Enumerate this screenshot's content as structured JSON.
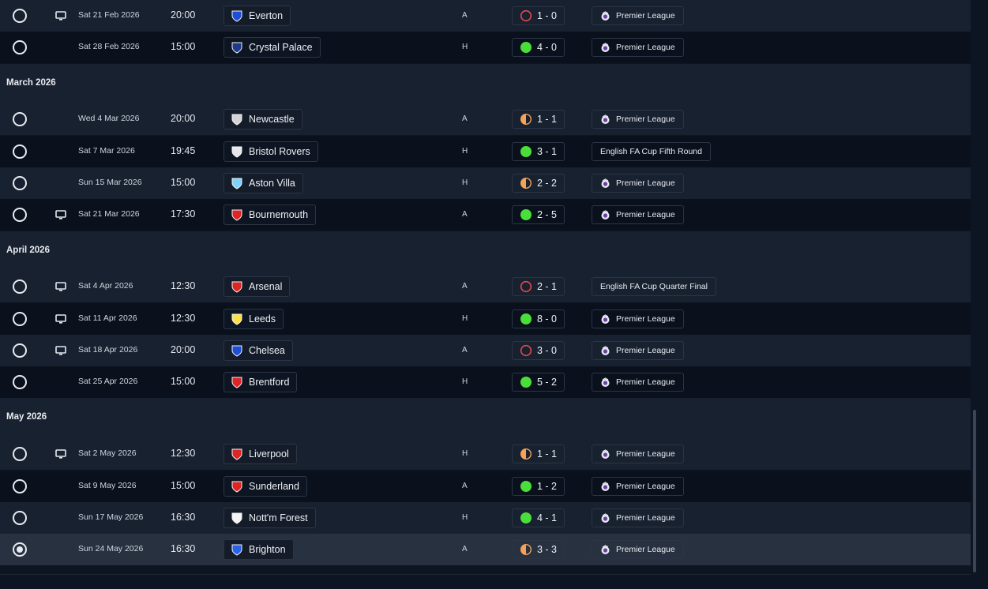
{
  "months": [
    {
      "label": "March 2026"
    },
    {
      "label": "April 2026"
    },
    {
      "label": "May 2026"
    }
  ],
  "fixtures": [
    {
      "date": "Sat 21 Feb 2026",
      "time": "20:00",
      "team": "Everton",
      "venue": "A",
      "score": "1 - 0",
      "outcome": "loss",
      "competition": "Premier League",
      "tv": true,
      "selected": false,
      "badge": "everton-badge",
      "badge_color": "#1d4ed8"
    },
    {
      "date": "Sat 28 Feb 2026",
      "time": "15:00",
      "team": "Crystal Palace",
      "venue": "H",
      "score": "4 - 0",
      "outcome": "win",
      "competition": "Premier League",
      "tv": false,
      "selected": false,
      "badge": "crystal-palace-badge",
      "badge_color": "#1e3a8a"
    },
    {
      "date": "Wed 4 Mar 2026",
      "time": "20:00",
      "team": "Newcastle",
      "venue": "A",
      "score": "1 - 1",
      "outcome": "draw",
      "competition": "Premier League",
      "tv": false,
      "selected": false,
      "badge": "newcastle-badge",
      "badge_color": "#d4d4d4"
    },
    {
      "date": "Sat 7 Mar 2026",
      "time": "19:45",
      "team": "Bristol Rovers",
      "venue": "H",
      "score": "3 - 1",
      "outcome": "win",
      "competition": "English FA Cup Fifth Round",
      "tv": false,
      "selected": false,
      "badge": "bristol-rovers-badge",
      "badge_color": "#e5e7eb"
    },
    {
      "date": "Sun 15 Mar 2026",
      "time": "15:00",
      "team": "Aston Villa",
      "venue": "H",
      "score": "2 - 2",
      "outcome": "draw",
      "competition": "Premier League",
      "tv": false,
      "selected": false,
      "badge": "aston-villa-badge",
      "badge_color": "#7dd3fc"
    },
    {
      "date": "Sat 21 Mar 2026",
      "time": "17:30",
      "team": "Bournemouth",
      "venue": "A",
      "score": "2 - 5",
      "outcome": "win",
      "competition": "Premier League",
      "tv": true,
      "selected": false,
      "badge": "bournemouth-badge",
      "badge_color": "#dc2626"
    },
    {
      "date": "Sat 4 Apr 2026",
      "time": "12:30",
      "team": "Arsenal",
      "venue": "A",
      "score": "2 - 1",
      "outcome": "loss",
      "competition": "English FA Cup Quarter Final",
      "tv": true,
      "selected": false,
      "badge": "arsenal-badge",
      "badge_color": "#dc2626"
    },
    {
      "date": "Sat 11 Apr 2026",
      "time": "12:30",
      "team": "Leeds",
      "venue": "H",
      "score": "8 - 0",
      "outcome": "win",
      "competition": "Premier League",
      "tv": true,
      "selected": false,
      "badge": "leeds-badge",
      "badge_color": "#fde047"
    },
    {
      "date": "Sat 18 Apr 2026",
      "time": "20:00",
      "team": "Chelsea",
      "venue": "A",
      "score": "3 - 0",
      "outcome": "loss",
      "competition": "Premier League",
      "tv": true,
      "selected": false,
      "badge": "chelsea-badge",
      "badge_color": "#1d4ed8"
    },
    {
      "date": "Sat 25 Apr 2026",
      "time": "15:00",
      "team": "Brentford",
      "venue": "H",
      "score": "5 - 2",
      "outcome": "win",
      "competition": "Premier League",
      "tv": false,
      "selected": false,
      "badge": "brentford-badge",
      "badge_color": "#dc2626"
    },
    {
      "date": "Sat 2 May 2026",
      "time": "12:30",
      "team": "Liverpool",
      "venue": "H",
      "score": "1 - 1",
      "outcome": "draw",
      "competition": "Premier League",
      "tv": true,
      "selected": false,
      "badge": "liverpool-badge",
      "badge_color": "#dc2626"
    },
    {
      "date": "Sat 9 May 2026",
      "time": "15:00",
      "team": "Sunderland",
      "venue": "A",
      "score": "1 - 2",
      "outcome": "win",
      "competition": "Premier League",
      "tv": false,
      "selected": false,
      "badge": "sunderland-badge",
      "badge_color": "#dc2626"
    },
    {
      "date": "Sun 17 May 2026",
      "time": "16:30",
      "team": "Nott'm Forest",
      "venue": "H",
      "score": "4 - 1",
      "outcome": "win",
      "competition": "Premier League",
      "tv": false,
      "selected": false,
      "badge": "nottm-forest-badge",
      "badge_color": "#f3f4f6"
    },
    {
      "date": "Sun 24 May 2026",
      "time": "16:30",
      "team": "Brighton",
      "venue": "A",
      "score": "3 - 3",
      "outcome": "draw",
      "competition": "Premier League",
      "tv": false,
      "selected": true,
      "badge": "brighton-badge",
      "badge_color": "#2563eb"
    }
  ],
  "colors": {
    "win": "#4ade3a",
    "draw": "#f4a259",
    "loss": "#e5484d"
  }
}
